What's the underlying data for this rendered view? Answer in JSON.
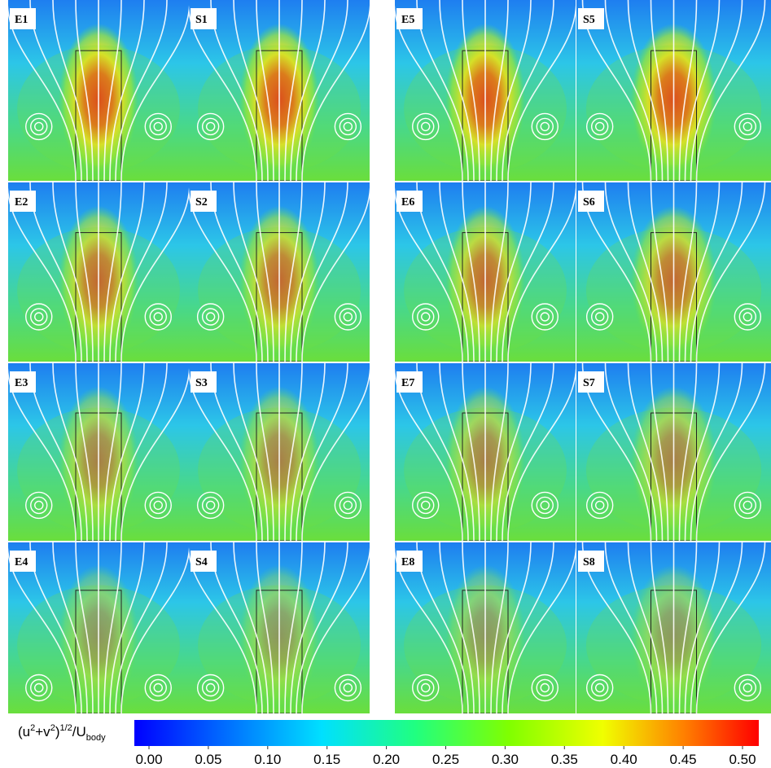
{
  "panels": [
    [
      "E1",
      "S1",
      "E5",
      "S5"
    ],
    [
      "E2",
      "S2",
      "E6",
      "S6"
    ],
    [
      "E3",
      "S3",
      "E7",
      "S7"
    ],
    [
      "E4",
      "S4",
      "E8",
      "S8"
    ]
  ],
  "colorbar": {
    "label_parts": [
      "(u",
      "2",
      "+v",
      "2",
      ")",
      "1/2",
      "/U",
      "body"
    ],
    "ticks": [
      {
        "value": 0,
        "label": "0.00"
      },
      {
        "value": 0.05,
        "label": "0.05"
      },
      {
        "value": 0.1,
        "label": "0.10"
      },
      {
        "value": 0.15,
        "label": "0.15"
      },
      {
        "value": 0.2,
        "label": "0.20"
      },
      {
        "value": 0.25,
        "label": "0.25"
      },
      {
        "value": 0.3,
        "label": "0.30"
      },
      {
        "value": 0.35,
        "label": "0.35"
      },
      {
        "value": 0.4,
        "label": "0.40"
      },
      {
        "value": 0.45,
        "label": "0.45"
      },
      {
        "value": 0.5,
        "label": "0.50"
      }
    ]
  }
}
